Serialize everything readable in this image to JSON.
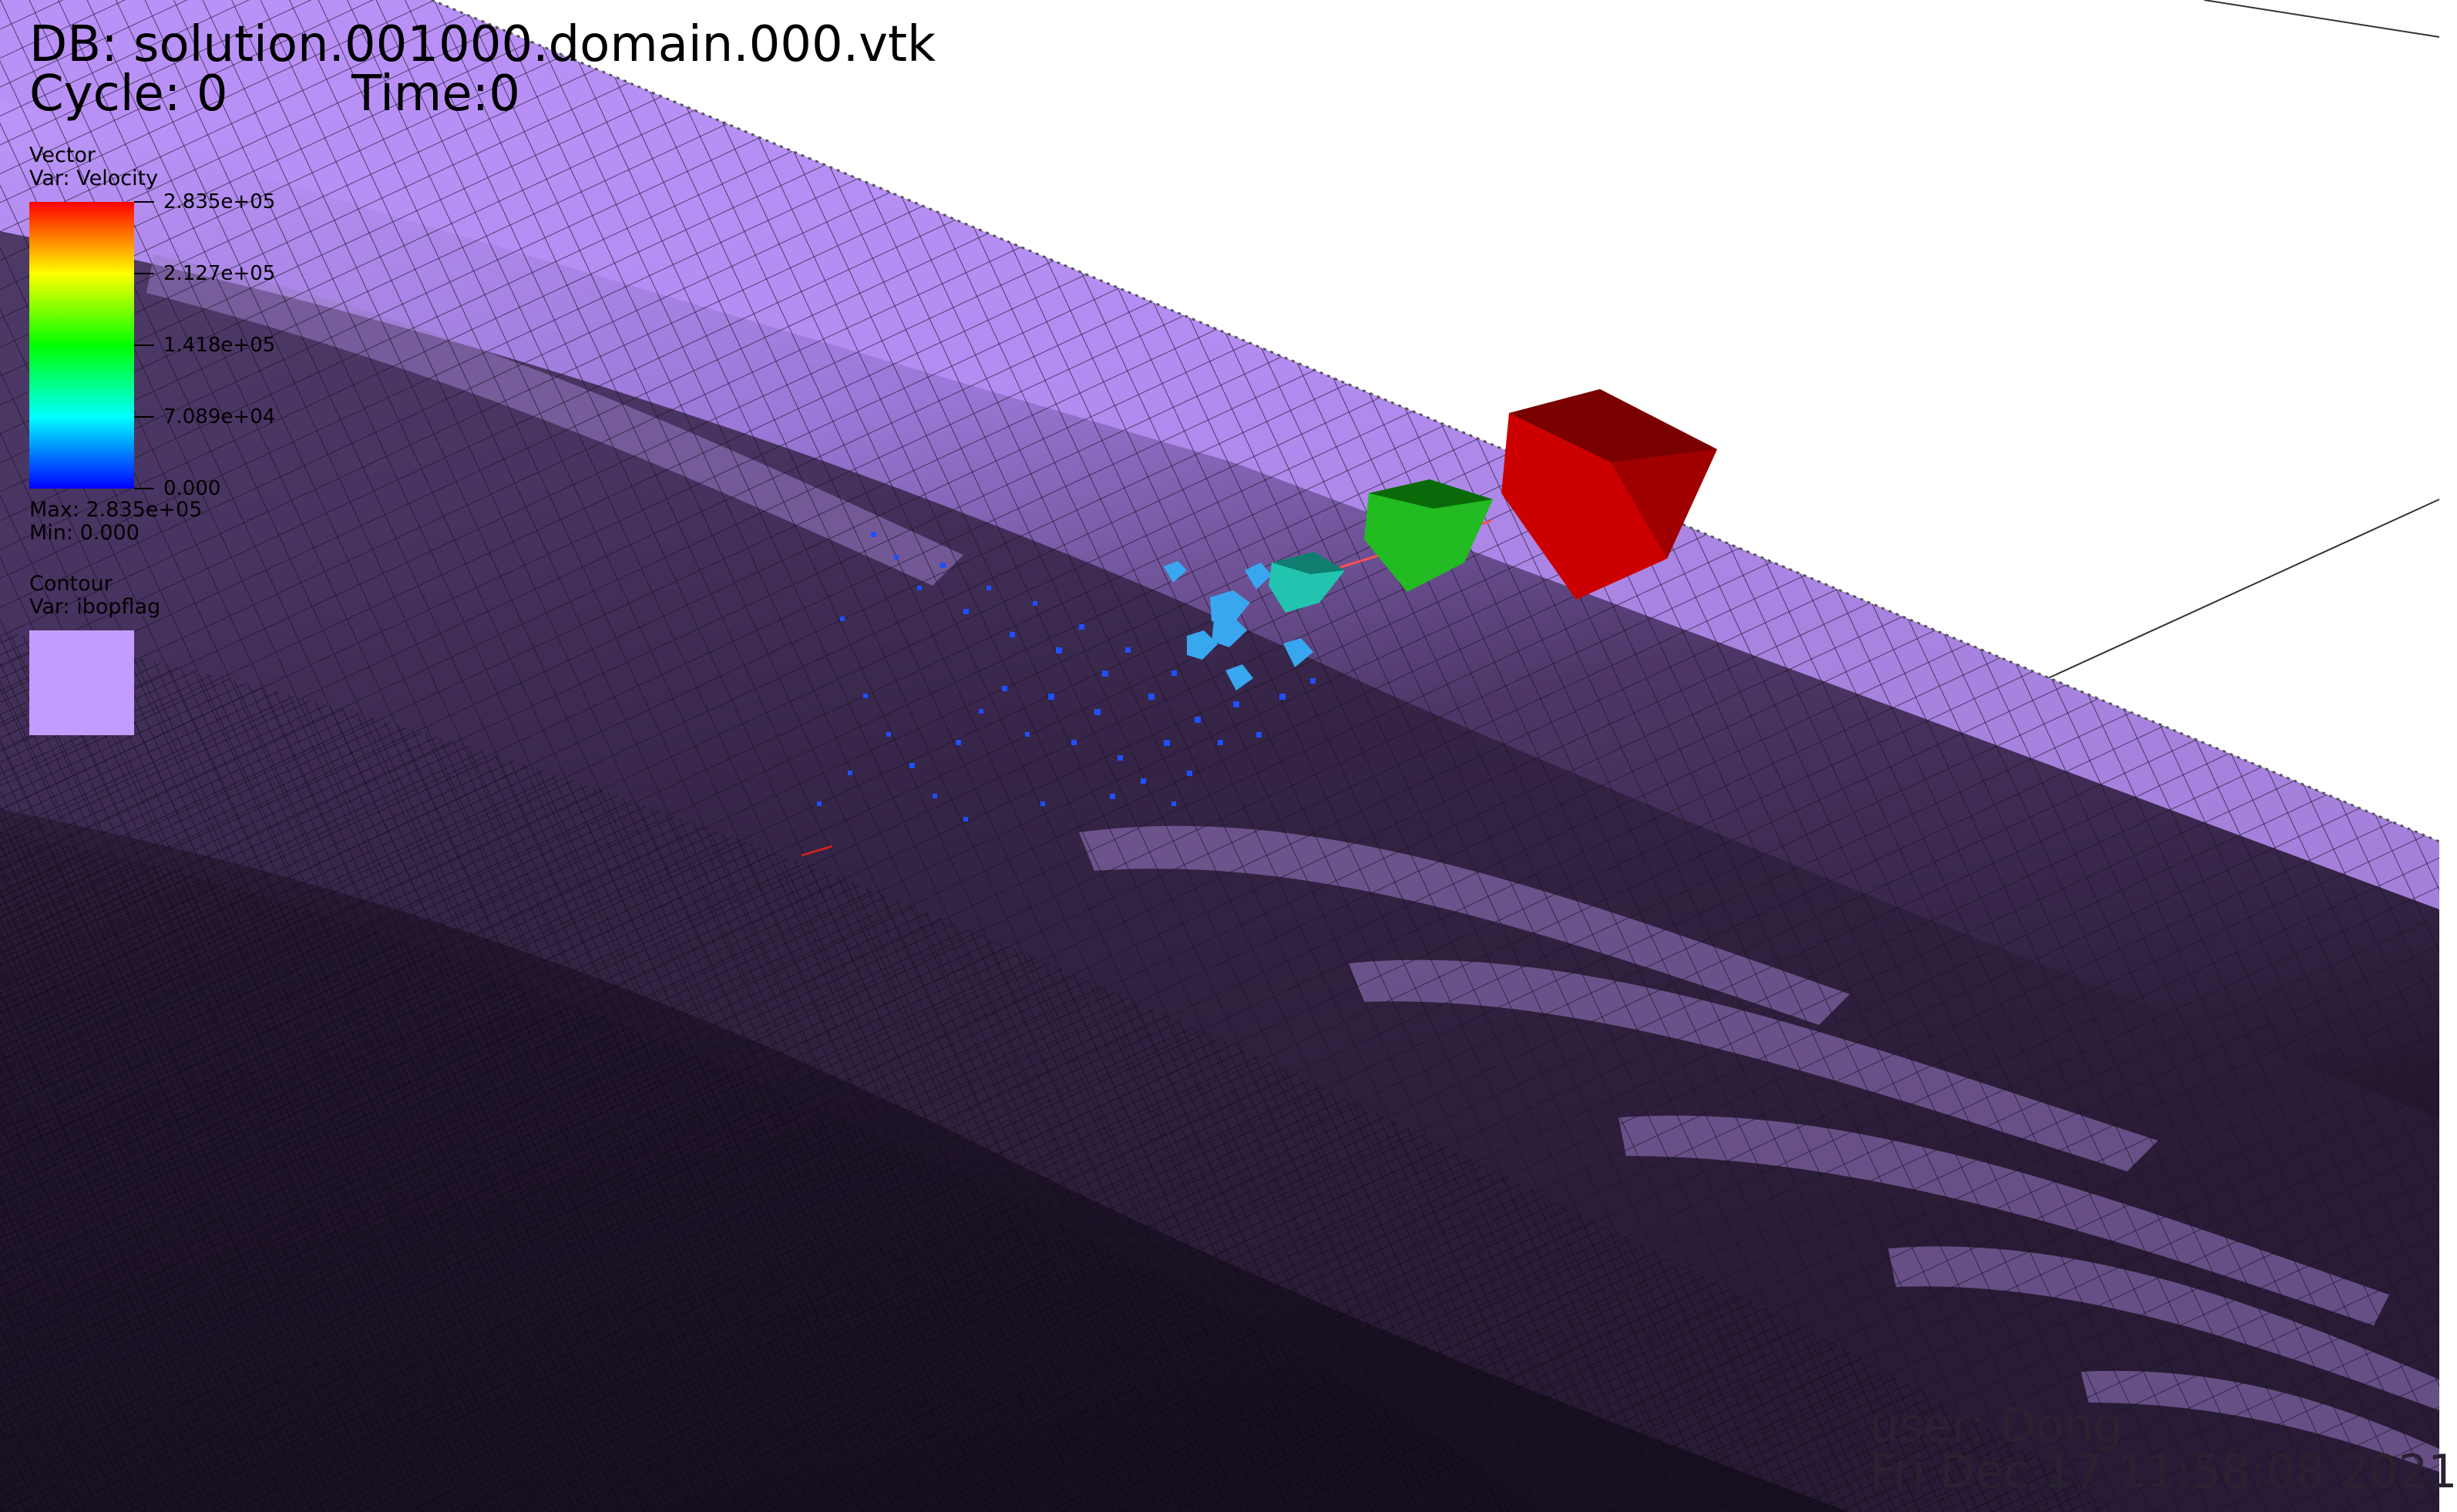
{
  "header": {
    "db": "DB: solution.001000.domain.000.vtk",
    "cycle": "Cycle: 0",
    "time": "Time:0"
  },
  "legend_vector": {
    "title": "Vector",
    "variable": "Var: Velocity",
    "ticks": [
      "2.835e+05",
      "2.127e+05",
      "1.418e+05",
      "7.089e+04",
      "0.000"
    ],
    "max": "Max: 2.835e+05",
    "min": "Min: 0.000",
    "colormap": [
      "#ff0000",
      "#ffff00",
      "#00ff00",
      "#00ffff",
      "#0000ff"
    ]
  },
  "legend_contour": {
    "title": "Contour",
    "variable": "Var: ibopflag",
    "swatch_color": "#c39cff"
  },
  "footer": {
    "user": "user: Dong",
    "date": "Fri Dec 17 11:58:08 2021"
  },
  "colors": {
    "surface": "#b48af0",
    "surface_dark": "#2b1d38",
    "mesh_line": "#1a1024",
    "arrow_large": "#cc0000",
    "arrow_medium": "#22bb22",
    "arrow_small": "#22c4b0",
    "arrow_tiny": "#1f4fff"
  }
}
